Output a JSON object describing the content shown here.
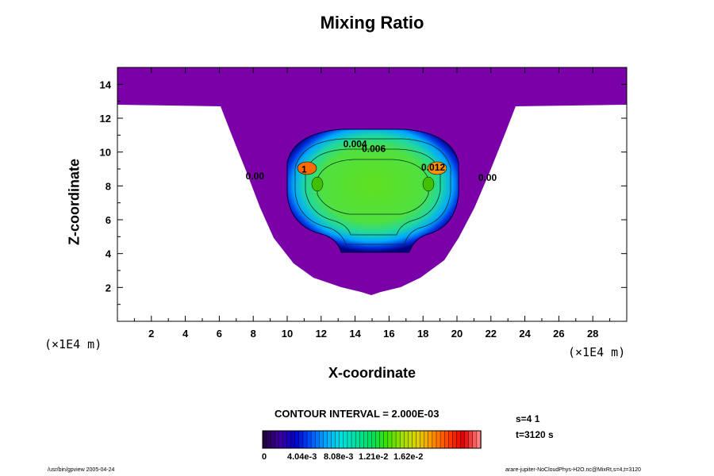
{
  "chart_data": {
    "type": "contour",
    "title": "Mixing Ratio",
    "xlabel": "X-coordinate",
    "ylabel": "Z-coordinate",
    "x_unit": "(×1E4 m)",
    "y_unit": "(×1E4 m)",
    "xlim": [
      0,
      30
    ],
    "ylim": [
      0,
      15
    ],
    "x_ticks": [
      2,
      4,
      6,
      8,
      10,
      12,
      14,
      16,
      18,
      20,
      22,
      24,
      26,
      28
    ],
    "y_ticks": [
      2,
      4,
      6,
      8,
      10,
      12,
      14
    ],
    "contour_labels": [
      {
        "text": "0.004",
        "x": 14.0,
        "y": 10.3
      },
      {
        "text": "0.006",
        "x": 15.1,
        "y": 10.0
      },
      {
        "text": "0.012",
        "x": 18.6,
        "y": 8.9
      },
      {
        "text": "0.00",
        "x": 8.1,
        "y": 8.4
      },
      {
        "text": "0.00",
        "x": 21.8,
        "y": 8.3
      },
      {
        "text": "1",
        "x": 11.0,
        "y": 8.8
      }
    ],
    "contour_interval": "CONTOUR INTERVAL = 2.000E-03",
    "colorbar": {
      "tick_labels": [
        "0",
        "4.04e-3",
        "8.08e-3",
        "1.21e-2",
        "1.62e-2"
      ],
      "colors": [
        "#220044",
        "#3b00a0",
        "#0000c8",
        "#0050ff",
        "#00a8ff",
        "#00e0e0",
        "#00e0a0",
        "#00e060",
        "#40e000",
        "#a0e000",
        "#e0d000",
        "#ff9000",
        "#ff4000",
        "#e00000",
        "#ff8080"
      ]
    }
  },
  "annotations": {
    "step": "s=4 1",
    "time": "t=3120 s",
    "footer_left": "/usr/bin/gpview 2005-04-24",
    "footer_right": "arare-jupiter-NoCloudPhys-H2O.nc@MixRt,s=4,t=3120"
  },
  "colors": {
    "outer_region": "#7a00a8",
    "plume_core": "#7cd838",
    "plume_rim": "#0040ff",
    "hotspot": "#ff6a00"
  }
}
